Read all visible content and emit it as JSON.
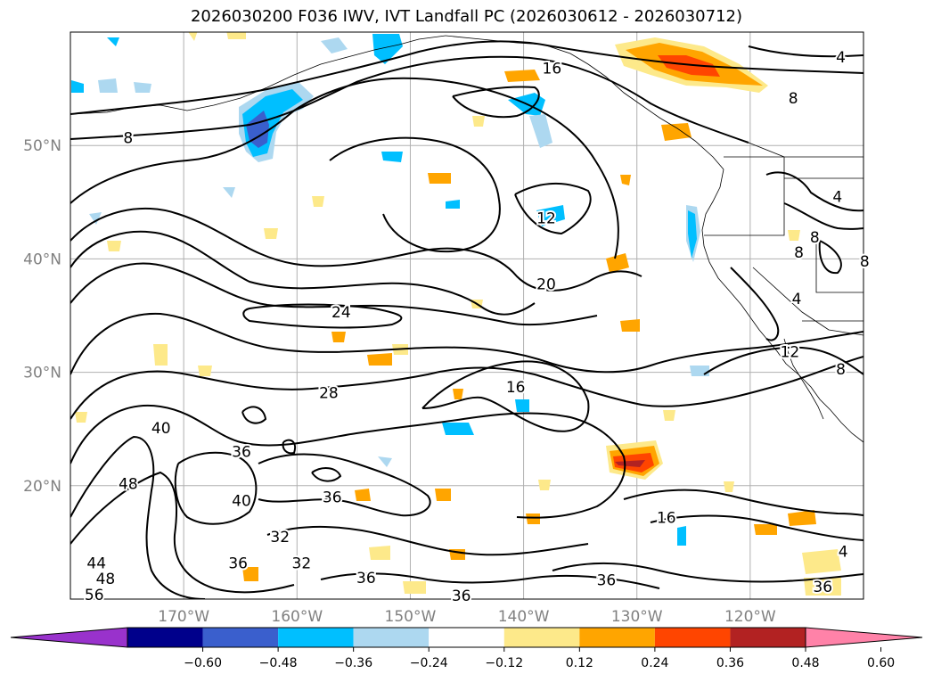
{
  "title": "2026030200 F036 IWV, IVT Landfall PC (2026030612 - 2026030712)",
  "axes": {
    "lat_ticks": [
      {
        "value": 50,
        "label": "50°N"
      },
      {
        "value": 40,
        "label": "40°N"
      },
      {
        "value": 30,
        "label": "30°N"
      },
      {
        "value": 20,
        "label": "20°N"
      }
    ],
    "lon_ticks": [
      {
        "value": -170,
        "label": "170°W"
      },
      {
        "value": -160,
        "label": "160°W"
      },
      {
        "value": -150,
        "label": "150°W"
      },
      {
        "value": -140,
        "label": "140°W"
      },
      {
        "value": -130,
        "label": "130°W"
      },
      {
        "value": -120,
        "label": "120°W"
      }
    ],
    "lon_range": [
      -180,
      -110
    ],
    "lat_range": [
      10,
      60
    ],
    "grid": true
  },
  "contour_labels": [
    {
      "text": "16",
      "lon": -137.5,
      "lat": 56.8
    },
    {
      "text": "4",
      "lon": -112.0,
      "lat": 57.8
    },
    {
      "text": "8",
      "lon": -116.2,
      "lat": 54.2
    },
    {
      "text": "8",
      "lon": -174.9,
      "lat": 50.7
    },
    {
      "text": "12",
      "lon": -138.0,
      "lat": 43.6
    },
    {
      "text": "4",
      "lon": -112.3,
      "lat": 45.5
    },
    {
      "text": "8",
      "lon": -114.3,
      "lat": 41.9
    },
    {
      "text": "8",
      "lon": -115.7,
      "lat": 40.6
    },
    {
      "text": "8",
      "lon": -109.9,
      "lat": 39.8
    },
    {
      "text": "20",
      "lon": -138.0,
      "lat": 37.8
    },
    {
      "text": "4",
      "lon": -115.9,
      "lat": 36.5
    },
    {
      "text": "24",
      "lon": -156.1,
      "lat": 35.3
    },
    {
      "text": "12",
      "lon": -116.5,
      "lat": 31.8
    },
    {
      "text": "8",
      "lon": -112.0,
      "lat": 30.3
    },
    {
      "text": "28",
      "lon": -157.2,
      "lat": 28.2
    },
    {
      "text": "16",
      "lon": -140.7,
      "lat": 28.7
    },
    {
      "text": "40",
      "lon": -172.0,
      "lat": 25.1
    },
    {
      "text": "36",
      "lon": -164.9,
      "lat": 23.0
    },
    {
      "text": "48",
      "lon": -174.9,
      "lat": 20.2
    },
    {
      "text": "36",
      "lon": -156.9,
      "lat": 19.0
    },
    {
      "text": "40",
      "lon": -164.9,
      "lat": 18.7
    },
    {
      "text": "16",
      "lon": -127.4,
      "lat": 17.2
    },
    {
      "text": "32",
      "lon": -161.5,
      "lat": 15.5
    },
    {
      "text": "36",
      "lon": -165.2,
      "lat": 13.2
    },
    {
      "text": "32",
      "lon": -159.6,
      "lat": 13.2
    },
    {
      "text": "44",
      "lon": -177.7,
      "lat": 13.2
    },
    {
      "text": "48",
      "lon": -176.9,
      "lat": 11.8
    },
    {
      "text": "36",
      "lon": -153.9,
      "lat": 11.9
    },
    {
      "text": "36",
      "lon": -132.7,
      "lat": 11.7
    },
    {
      "text": "56",
      "lon": -177.9,
      "lat": 10.4
    },
    {
      "text": "36",
      "lon": -145.5,
      "lat": 10.3
    },
    {
      "text": "4",
      "lon": -111.8,
      "lat": 14.2
    },
    {
      "text": "36",
      "lon": -113.6,
      "lat": 11.1
    }
  ],
  "colorbar": {
    "ticks": [
      "−0.60",
      "−0.48",
      "−0.36",
      "−0.24",
      "−0.12",
      "0.12",
      "0.24",
      "0.36",
      "0.48",
      "0.60"
    ],
    "colors": [
      "#9932cc",
      "#00008b",
      "#3a5fcd",
      "#00bfff",
      "#add8f0",
      "#ffffff",
      "#fde98a",
      "#ffa500",
      "#ff4500",
      "#b22222",
      "#ff82a8"
    ]
  },
  "shading_colors": {
    "light_blue": "#add8f0",
    "blue": "#00bfff",
    "dark_blue": "#3a5fcd",
    "yellow": "#fde98a",
    "orange": "#ffa500",
    "red": "#ff4500",
    "dark_red": "#b22222"
  }
}
